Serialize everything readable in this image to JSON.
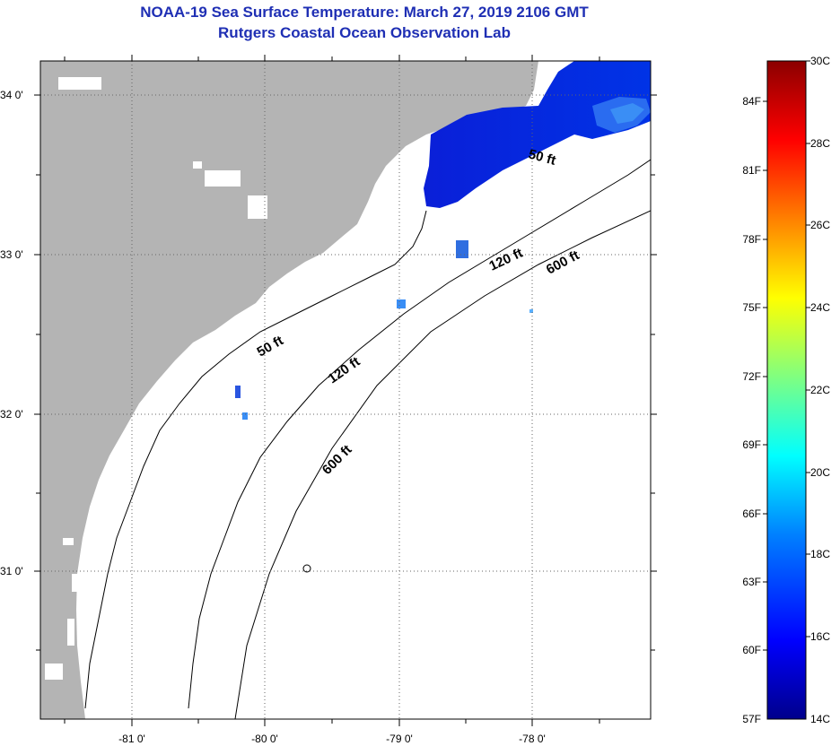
{
  "title": {
    "line1": "NOAA-19 Sea Surface Temperature:  March 27, 2019 2106 GMT",
    "line2": "Rutgers Coastal Ocean Observation Lab"
  },
  "map": {
    "land_color": "#b4b4b4",
    "water_color": "#ffffff",
    "latitude_labels": [
      "34 0'",
      "33 0'",
      "32 0'",
      "31 0'"
    ],
    "longitude_labels": [
      "-81 0'",
      "-80 0'",
      "-79 0'",
      "-78 0'"
    ],
    "contour_labels": [
      "50 ft",
      "120 ft",
      "600 ft",
      "120 ft",
      "600 ft",
      "50 ft"
    ]
  },
  "colorbar": {
    "fahrenheit_labels": [
      "84F",
      "81F",
      "78F",
      "75F",
      "72F",
      "69F",
      "66F",
      "63F",
      "60F",
      "57F"
    ],
    "celsius_labels": [
      "30C",
      "28C",
      "26C",
      "24C",
      "22C",
      "20C",
      "18C",
      "16C",
      "14C"
    ],
    "colors": [
      "#8b0000",
      "#ff0000",
      "#ff8000",
      "#ffff00",
      "#80ff80",
      "#00ffff",
      "#0080ff",
      "#0000ff",
      "#00008b"
    ]
  }
}
